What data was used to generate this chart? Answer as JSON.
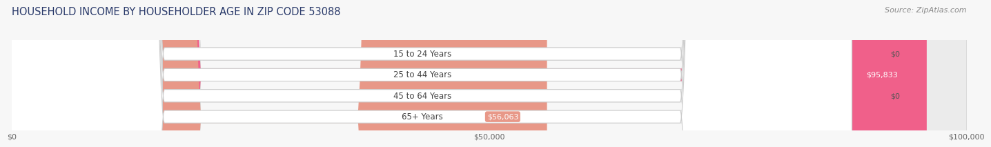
{
  "title": "HOUSEHOLD INCOME BY HOUSEHOLDER AGE IN ZIP CODE 53088",
  "source": "Source: ZipAtlas.com",
  "categories": [
    "15 to 24 Years",
    "25 to 44 Years",
    "45 to 64 Years",
    "65+ Years"
  ],
  "values": [
    0,
    95833,
    0,
    56063
  ],
  "bar_colors": [
    "#a0a0cc",
    "#f0608a",
    "#f0c890",
    "#e89888"
  ],
  "value_labels": [
    "$0",
    "$95,833",
    "$0",
    "$56,063"
  ],
  "xlim": [
    0,
    100000
  ],
  "xticks": [
    0,
    50000,
    100000
  ],
  "xtick_labels": [
    "$0",
    "$50,000",
    "$100,000"
  ],
  "background_color": "#f7f7f7",
  "bar_bg_color": "#ebebeb",
  "title_fontsize": 10.5,
  "source_fontsize": 8
}
